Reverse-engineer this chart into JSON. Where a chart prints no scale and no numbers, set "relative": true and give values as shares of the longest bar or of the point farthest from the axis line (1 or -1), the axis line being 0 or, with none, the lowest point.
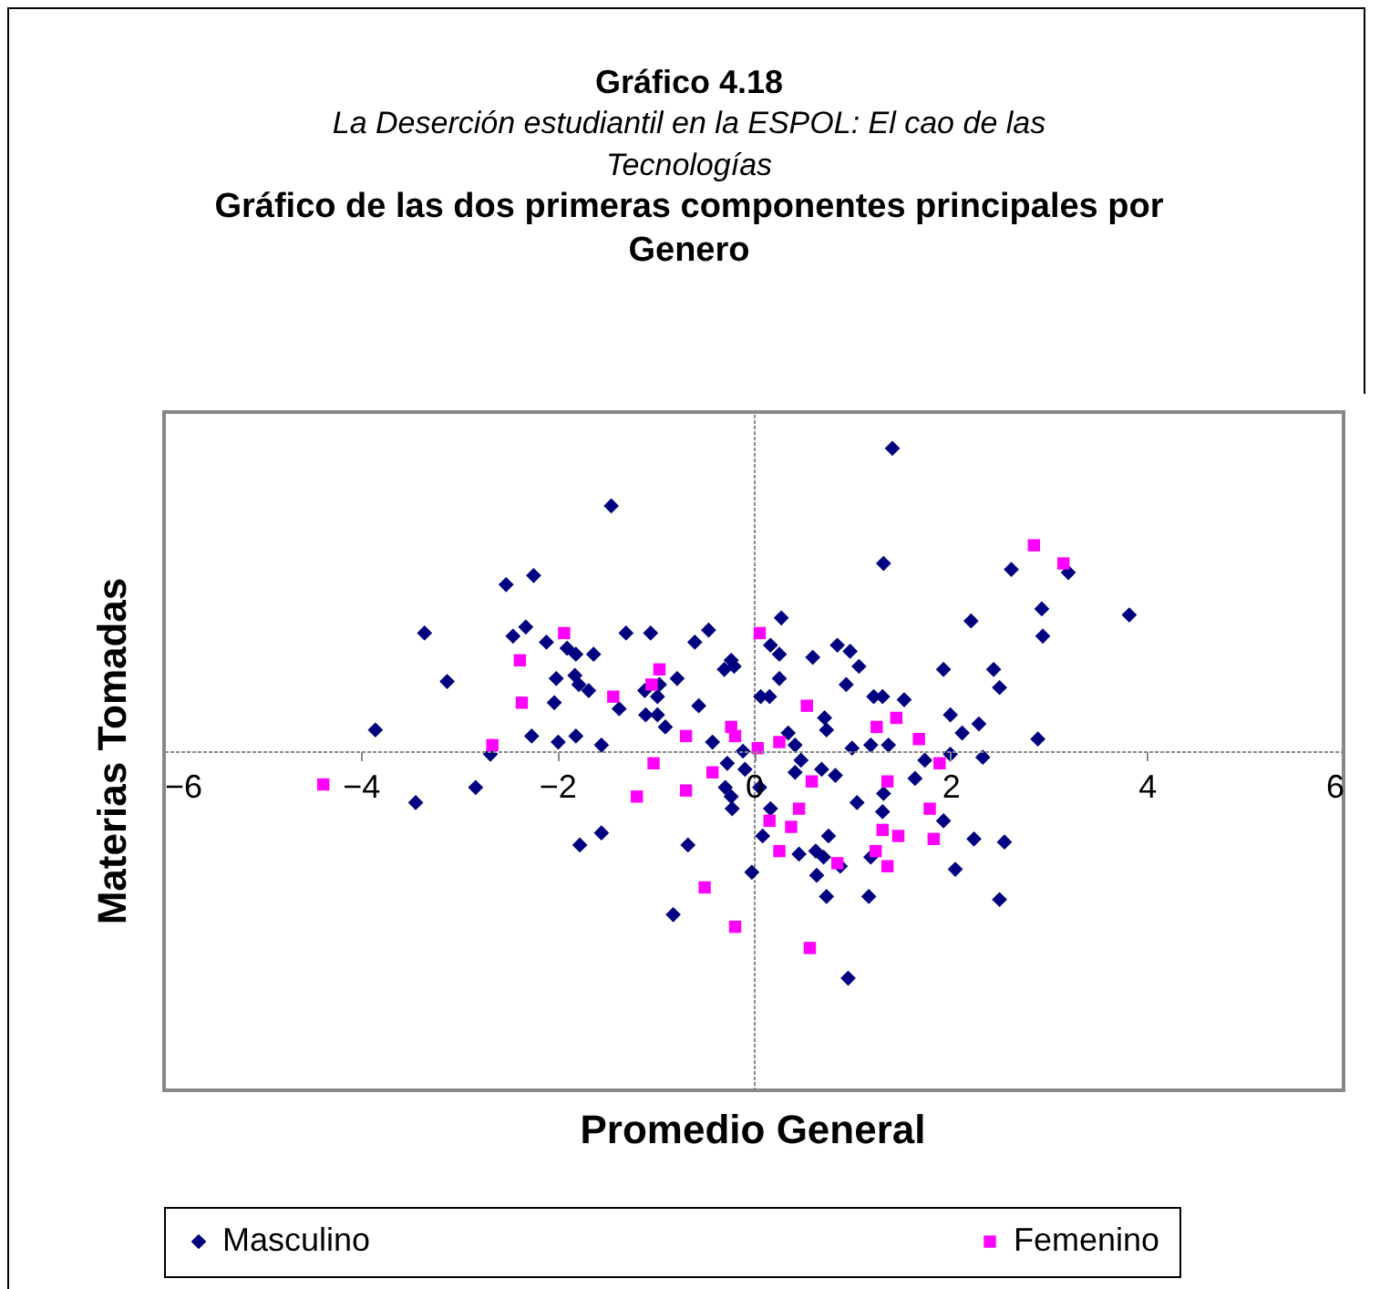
{
  "chart_data": {
    "type": "scatter",
    "title": "Gráfico 4.18",
    "subtitle": "La Deserción estudiantil en la ESPOL: El cao de las Tecnologías",
    "annotations": [
      "Gráfico de las dos primeras componentes principales por  Genero"
    ],
    "xlabel": "Promedio General",
    "ylabel": "Materias Tomadas",
    "relative": true,
    "xlim": [
      -6,
      6
    ],
    "xticks": [
      -6,
      -4,
      -2,
      0,
      2,
      4,
      6
    ],
    "legend": "bottom",
    "series": [
      {
        "name": "Masculino",
        "color": "#000080",
        "marker": "diamond",
        "x": [
          -2.52,
          -2.24,
          -3.35,
          -2.32,
          -2.45,
          -2.11,
          -3.12,
          -2.01,
          -2.03,
          -3.85,
          -2.26,
          -1.99,
          -2.68,
          -1.45,
          1.41,
          1.32,
          -1.9,
          -1.81,
          -1.63,
          -1.3,
          -1.05,
          -0.6,
          -0.46,
          -1.82,
          -1.78,
          -1.68,
          -1.37,
          -1.11,
          -0.96,
          -0.98,
          -0.78,
          -1.1,
          -0.98,
          -0.9,
          -0.56,
          -0.3,
          -0.23,
          -0.2,
          -1.81,
          -1.55,
          -0.42,
          0.28,
          0.17,
          0.26,
          0.26,
          0.6,
          0.85,
          0.98,
          1.07,
          0.94,
          0.07,
          0.16,
          0.72,
          0.74,
          0.35,
          1.22,
          1.31,
          1.53,
          1.93,
          1.19,
          1.37,
          1.0,
          0.42,
          2.62,
          3.2,
          2.21,
          2.93,
          2.94,
          3.82,
          2.44,
          2.5,
          2.0,
          2.12,
          2.29,
          2.89,
          2.0,
          2.33,
          -3.44,
          -2.83,
          -1.77,
          -1.55,
          -0.67,
          -0.82,
          -0.02,
          -0.27,
          -0.11,
          -0.09,
          -0.29,
          -0.23,
          -0.22,
          0.06,
          0.17,
          0.09,
          0.42,
          0.48,
          0.69,
          0.83,
          1.05,
          0.76,
          0.46,
          0.63,
          0.71,
          0.64,
          0.74,
          1.17,
          0.96,
          1.31,
          1.32,
          1.64,
          1.74,
          0.88,
          1.19,
          1.93,
          2.24,
          2.55,
          2.05,
          2.5
        ],
        "values": [
          0.55,
          0.58,
          0.39,
          0.41,
          0.38,
          0.36,
          0.23,
          0.24,
          0.16,
          0.07,
          0.05,
          0.03,
          -0.01,
          0.81,
          1.0,
          0.62,
          0.34,
          0.32,
          0.32,
          0.39,
          0.39,
          0.36,
          0.4,
          0.25,
          0.22,
          0.2,
          0.14,
          0.2,
          0.22,
          0.18,
          0.24,
          0.12,
          0.12,
          0.08,
          0.15,
          0.27,
          0.3,
          0.28,
          0.05,
          0.02,
          0.03,
          0.44,
          0.35,
          0.32,
          0.24,
          0.31,
          0.35,
          0.33,
          0.28,
          0.22,
          0.18,
          0.18,
          0.11,
          0.07,
          0.06,
          0.18,
          0.18,
          0.17,
          0.27,
          0.02,
          0.02,
          0.01,
          0.02,
          0.6,
          0.59,
          0.43,
          0.47,
          0.38,
          0.45,
          0.27,
          0.21,
          0.12,
          0.06,
          0.09,
          0.04,
          -0.01,
          -0.02,
          -0.17,
          -0.12,
          -0.31,
          -0.27,
          -0.31,
          -0.54,
          -0.4,
          -0.04,
          0.0,
          -0.06,
          -0.12,
          -0.15,
          -0.19,
          -0.12,
          -0.19,
          -0.28,
          -0.07,
          -0.03,
          -0.06,
          -0.08,
          -0.17,
          -0.28,
          -0.34,
          -0.33,
          -0.35,
          -0.41,
          -0.48,
          -0.48,
          -0.75,
          -0.2,
          -0.14,
          -0.09,
          -0.03,
          -0.38,
          -0.35,
          -0.23,
          -0.29,
          -0.3,
          -0.39,
          -0.49
        ]
      },
      {
        "name": "Femenino",
        "color": "#ff00ff",
        "marker": "square",
        "x": [
          -2.38,
          -2.36,
          -2.66,
          -1.93,
          -1.43,
          -0.96,
          -1.04,
          -0.69,
          -0.23,
          -0.19,
          0.06,
          0.54,
          0.04,
          0.26,
          1.25,
          1.45,
          1.68,
          2.85,
          3.15,
          -4.38,
          -1.02,
          -1.19,
          -0.69,
          -0.42,
          -0.5,
          -0.19,
          0.57,
          0.16,
          0.38,
          0.46,
          0.26,
          0.59,
          0.85,
          1.36,
          1.24,
          1.36,
          1.31,
          1.47,
          1.79,
          1.83,
          1.89
        ],
        "values": [
          0.3,
          0.16,
          0.02,
          0.39,
          0.18,
          0.27,
          0.22,
          0.05,
          0.08,
          0.05,
          0.39,
          0.15,
          0.01,
          0.03,
          0.08,
          0.11,
          0.04,
          0.68,
          0.62,
          -0.11,
          -0.04,
          -0.15,
          -0.13,
          -0.07,
          -0.45,
          -0.58,
          -0.65,
          -0.23,
          -0.25,
          -0.19,
          -0.33,
          -0.1,
          -0.37,
          -0.1,
          -0.33,
          -0.38,
          -0.26,
          -0.28,
          -0.19,
          -0.29,
          -0.04
        ]
      }
    ]
  }
}
